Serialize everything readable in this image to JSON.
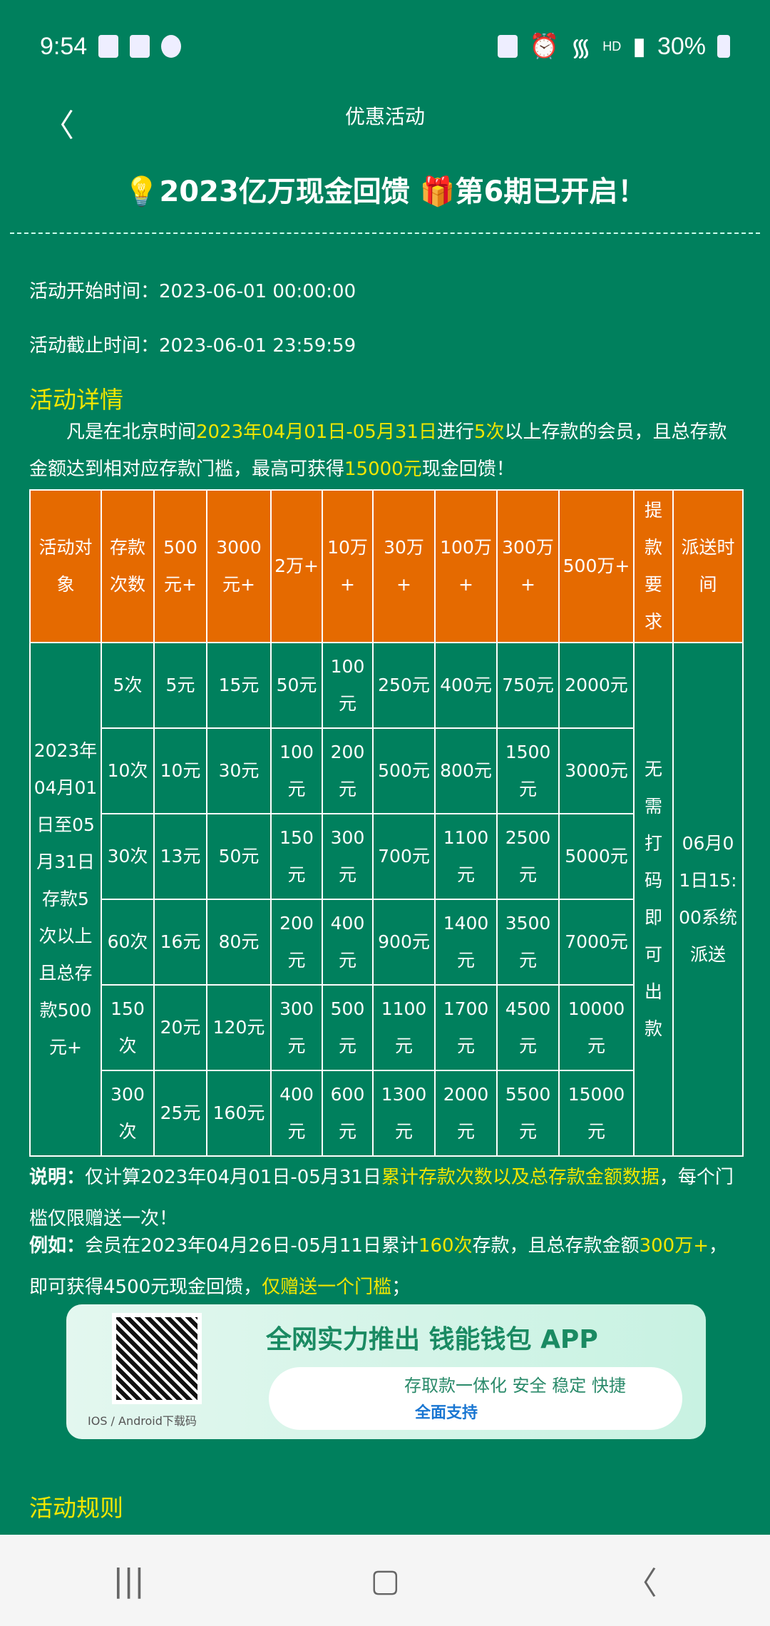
{
  "status": {
    "time": "9:54",
    "battery": "30%",
    "network": "HD"
  },
  "nav": {
    "title": "优惠活动"
  },
  "headline": "💡2023亿万现金回馈 🎁第6期已开启！",
  "start": "活动开始时间：2023-06-01 00:00:00",
  "end": "活动截止时间：2023-06-01 23:59:59",
  "details": {
    "heading": "活动详情",
    "p1a": "凡是在北京时间",
    "p1b": "2023年04月01日-05月31日",
    "p1c": "进行",
    "p1d": "5次",
    "p1e": "以上存款的会员，且总存款金额达到相对应存款门槛，最高可获得",
    "p1f": "15000元",
    "p1g": "现金回馈！"
  },
  "table": {
    "headers": [
      "活动对象",
      "存款次数",
      "500元+",
      "3000元+",
      "2万+",
      "10万+",
      "30万+",
      "100万+",
      "300万+",
      "500万+",
      "提款要求",
      "派送时间"
    ],
    "target": "2023年04月01日至05月31日存款5次以上且总存款500元+",
    "withdraw": "无需打码即可出款",
    "delivery": "06月01日15:00系统派送",
    "rows": [
      [
        "5次",
        "5元",
        "15元",
        "50元",
        "100元",
        "250元",
        "400元",
        "750元",
        "2000元"
      ],
      [
        "10次",
        "10元",
        "30元",
        "100元",
        "200元",
        "500元",
        "800元",
        "1500元",
        "3000元"
      ],
      [
        "30次",
        "13元",
        "50元",
        "150元",
        "300元",
        "700元",
        "1100元",
        "2500元",
        "5000元"
      ],
      [
        "60次",
        "16元",
        "80元",
        "200元",
        "400元",
        "900元",
        "1400元",
        "3500元",
        "7000元"
      ],
      [
        "150次",
        "20元",
        "120元",
        "300元",
        "500元",
        "1100元",
        "1700元",
        "4500元",
        "10000元"
      ],
      [
        "300次",
        "25元",
        "160元",
        "400元",
        "600元",
        "1300元",
        "2000元",
        "5500元",
        "15000元"
      ]
    ]
  },
  "note": {
    "label": "说明：",
    "a": "仅计算2023年04月01日-05月31日",
    "b": "累计存款次数以及总存款金额数据",
    "c": "，每个门槛仅限赠送一次！"
  },
  "example": {
    "label": "例如：",
    "a": "会员在2023年04月26日-05月11日累计",
    "b": "160次",
    "c": "存款，且总存款金额",
    "d": "300万+",
    "e": "，即可获得4500元现金回馈，",
    "f": "仅赠送一个门槛",
    "g": "；"
  },
  "banner": {
    "slogan": "全网实力推出 钱能钱包 APP",
    "qr_label": "IOS / Android下载码",
    "line1": "存取款一体化 安全 稳定 快捷",
    "line2": "全面支持"
  },
  "rules": {
    "heading": "活动规则"
  },
  "colors": {
    "background": "#00805d",
    "header": "#e56a00",
    "highlight": "#f2e600"
  }
}
